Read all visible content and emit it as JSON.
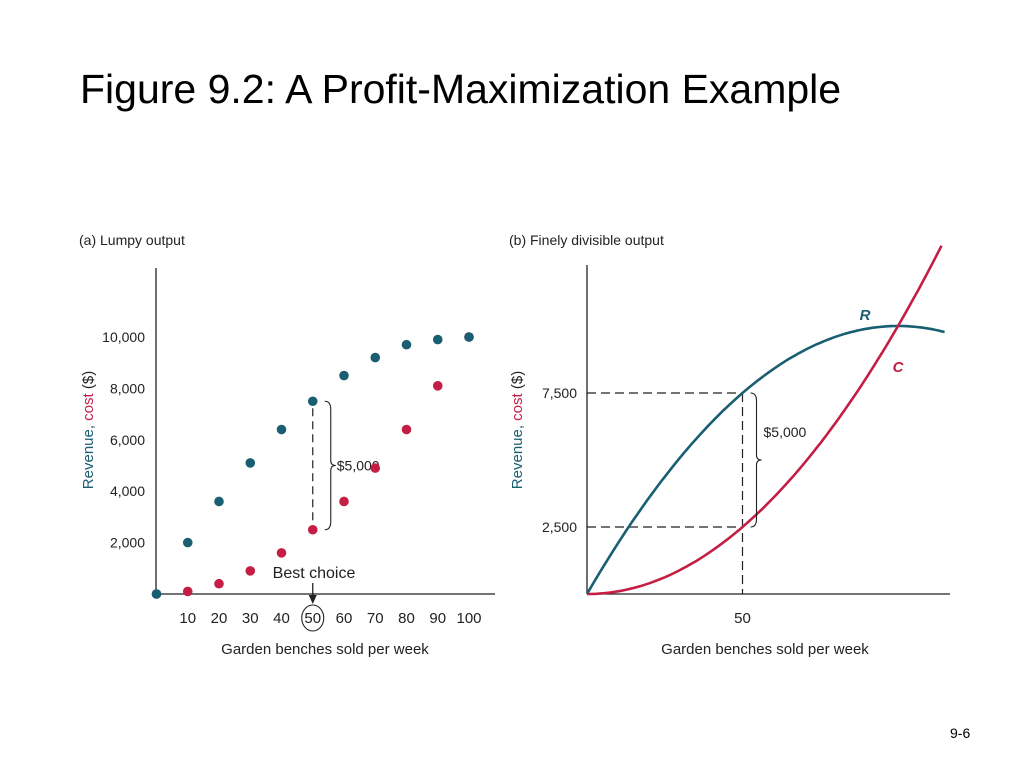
{
  "slide": {
    "title": "Figure 9.2: A Profit-Maximization Example",
    "page_number": "9-6"
  },
  "colors": {
    "revenue": "#1a5e72",
    "cost": "#c41e45",
    "axis": "#222222"
  },
  "chart_data": [
    {
      "type": "scatter",
      "title": "(a) Lumpy output",
      "xlabel": "Garden benches sold per week",
      "ylabel_parts": [
        "Revenue",
        ", ",
        "cost",
        " ($)"
      ],
      "xlim": [
        0,
        105
      ],
      "ylim": [
        0,
        12500
      ],
      "x_ticks": [
        10,
        20,
        30,
        40,
        50,
        60,
        70,
        80,
        90,
        100
      ],
      "y_ticks": [
        2000,
        4000,
        6000,
        8000,
        10000
      ],
      "y_tick_labels": [
        "2,000",
        "4,000",
        "6,000",
        "8,000",
        "10,000"
      ],
      "highlight_x": 50,
      "series": [
        {
          "role": "revenue",
          "x": [
            0,
            10,
            20,
            30,
            40,
            50,
            60,
            70,
            80,
            90,
            100
          ],
          "values": [
            0,
            2000,
            3600,
            5100,
            6400,
            7500,
            8500,
            9200,
            9700,
            9900,
            10000
          ]
        },
        {
          "role": "cost",
          "x": [
            0,
            10,
            20,
            30,
            40,
            50,
            60,
            70,
            80,
            90,
            100
          ],
          "values": [
            0,
            100,
            400,
            900,
            1600,
            2500,
            3600,
            4900,
            6400,
            8100,
            10000
          ]
        }
      ],
      "annotations": {
        "gap_label": "$5,000",
        "best_label": "Best choice"
      }
    },
    {
      "type": "line",
      "title": "(b) Finely divisible output",
      "xlabel": "Garden benches sold per week",
      "ylabel_parts": [
        "Revenue",
        ", ",
        "cost",
        " ($)"
      ],
      "xlim": [
        0,
        125
      ],
      "ylim": [
        0,
        12500
      ],
      "x_ticks": [
        50
      ],
      "y_ticks": [
        2500,
        7500
      ],
      "y_tick_labels": [
        "2,500",
        "7,500"
      ],
      "series": [
        {
          "name": "R",
          "role": "revenue",
          "function": "200x - x^2"
        },
        {
          "name": "C",
          "role": "cost",
          "function": "x^2"
        }
      ],
      "annotations": {
        "gap_label": "$5,000",
        "marker_x": 50
      }
    }
  ]
}
